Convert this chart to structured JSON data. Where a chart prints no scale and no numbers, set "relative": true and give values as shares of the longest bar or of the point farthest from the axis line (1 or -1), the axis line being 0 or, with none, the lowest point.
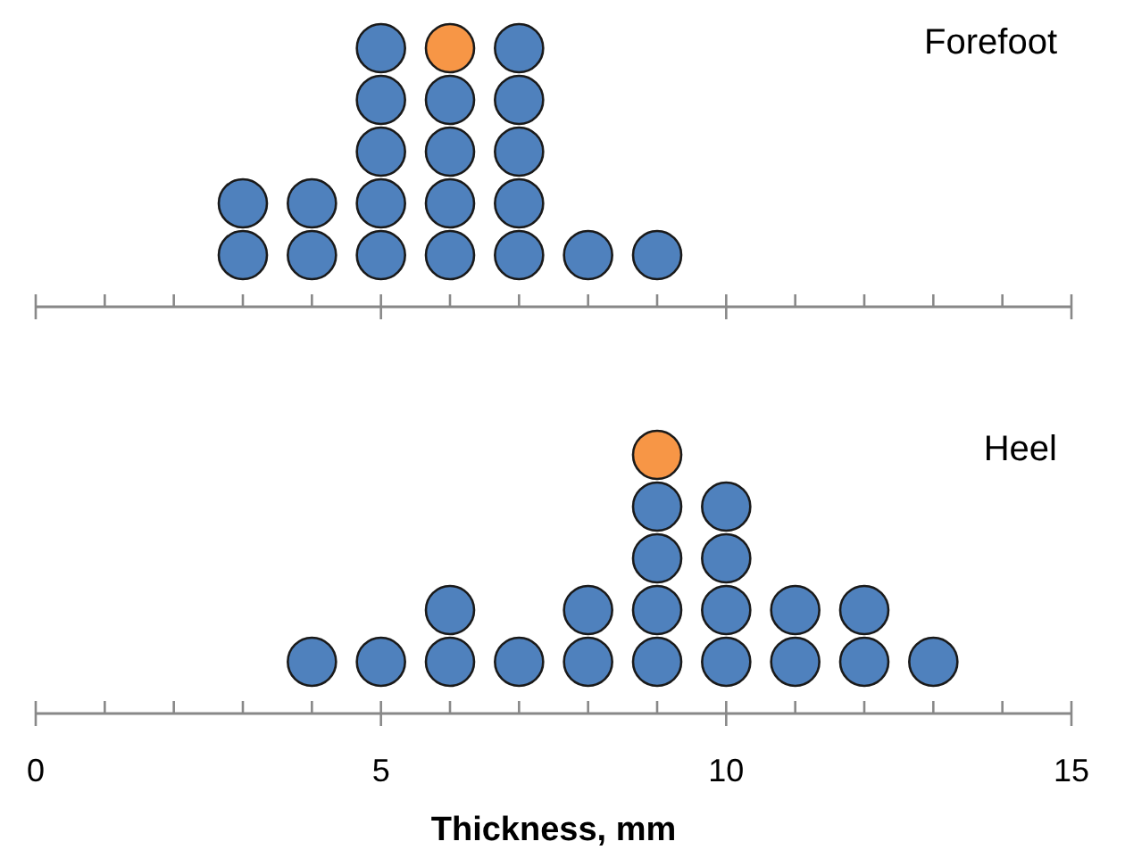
{
  "chart_data": [
    {
      "type": "scatter",
      "title": "Forefoot",
      "relative": true,
      "marker": "circle",
      "tick_labels": false,
      "xlim": [
        0,
        15
      ],
      "xticks": [
        0,
        {
          "value": 1,
          "label": null
        },
        {
          "value": 2,
          "label": null
        },
        {
          "value": 3,
          "label": null
        },
        {
          "value": 4,
          "label": null
        },
        5,
        {
          "value": 6,
          "label": null
        },
        {
          "value": 7,
          "label": null
        },
        {
          "value": 8,
          "label": null
        },
        {
          "value": 9,
          "label": null
        },
        10,
        {
          "value": 11,
          "label": null
        },
        {
          "value": 12,
          "label": null
        },
        {
          "value": 13,
          "label": null
        },
        {
          "value": 14,
          "label": null
        },
        15
      ],
      "series": [
        {
          "color": "#4f81bd",
          "x": [
            3,
            3,
            4,
            4,
            5,
            5,
            5,
            5,
            5,
            6,
            6,
            6,
            6,
            7,
            7,
            7,
            7,
            7,
            8,
            9
          ],
          "values": [
            0.2,
            0.4,
            0.2,
            0.4,
            0.2,
            0.4,
            0.6,
            0.8,
            1,
            0.2,
            0.4,
            0.6,
            0.8,
            0.2,
            0.4,
            0.6,
            0.8,
            1,
            0.2,
            0.2
          ]
        },
        {
          "color": "#f79646",
          "x": [
            6
          ],
          "values": [
            1
          ]
        }
      ]
    },
    {
      "type": "scatter",
      "title": "Heel",
      "xlabel": "Thickness, mm",
      "relative": true,
      "marker": "circle",
      "xlim": [
        0,
        15
      ],
      "xticks": [
        0,
        {
          "value": 1,
          "label": null
        },
        {
          "value": 2,
          "label": null
        },
        {
          "value": 3,
          "label": null
        },
        {
          "value": 4,
          "label": null
        },
        5,
        {
          "value": 6,
          "label": null
        },
        {
          "value": 7,
          "label": null
        },
        {
          "value": 8,
          "label": null
        },
        {
          "value": 9,
          "label": null
        },
        10,
        {
          "value": 11,
          "label": null
        },
        {
          "value": 12,
          "label": null
        },
        {
          "value": 13,
          "label": null
        },
        {
          "value": 14,
          "label": null
        },
        15
      ],
      "series": [
        {
          "color": "#4f81bd",
          "x": [
            4,
            5,
            6,
            6,
            7,
            8,
            8,
            9,
            9,
            9,
            9,
            10,
            10,
            10,
            10,
            11,
            11,
            12,
            12,
            13
          ],
          "values": [
            0.2,
            0.2,
            0.2,
            0.4,
            0.2,
            0.2,
            0.4,
            0.2,
            0.4,
            0.6,
            0.8,
            0.2,
            0.4,
            0.6,
            0.8,
            0.2,
            0.4,
            0.2,
            0.4,
            0.2
          ]
        },
        {
          "color": "#f79646",
          "x": [
            9
          ],
          "values": [
            1
          ]
        }
      ]
    }
  ]
}
